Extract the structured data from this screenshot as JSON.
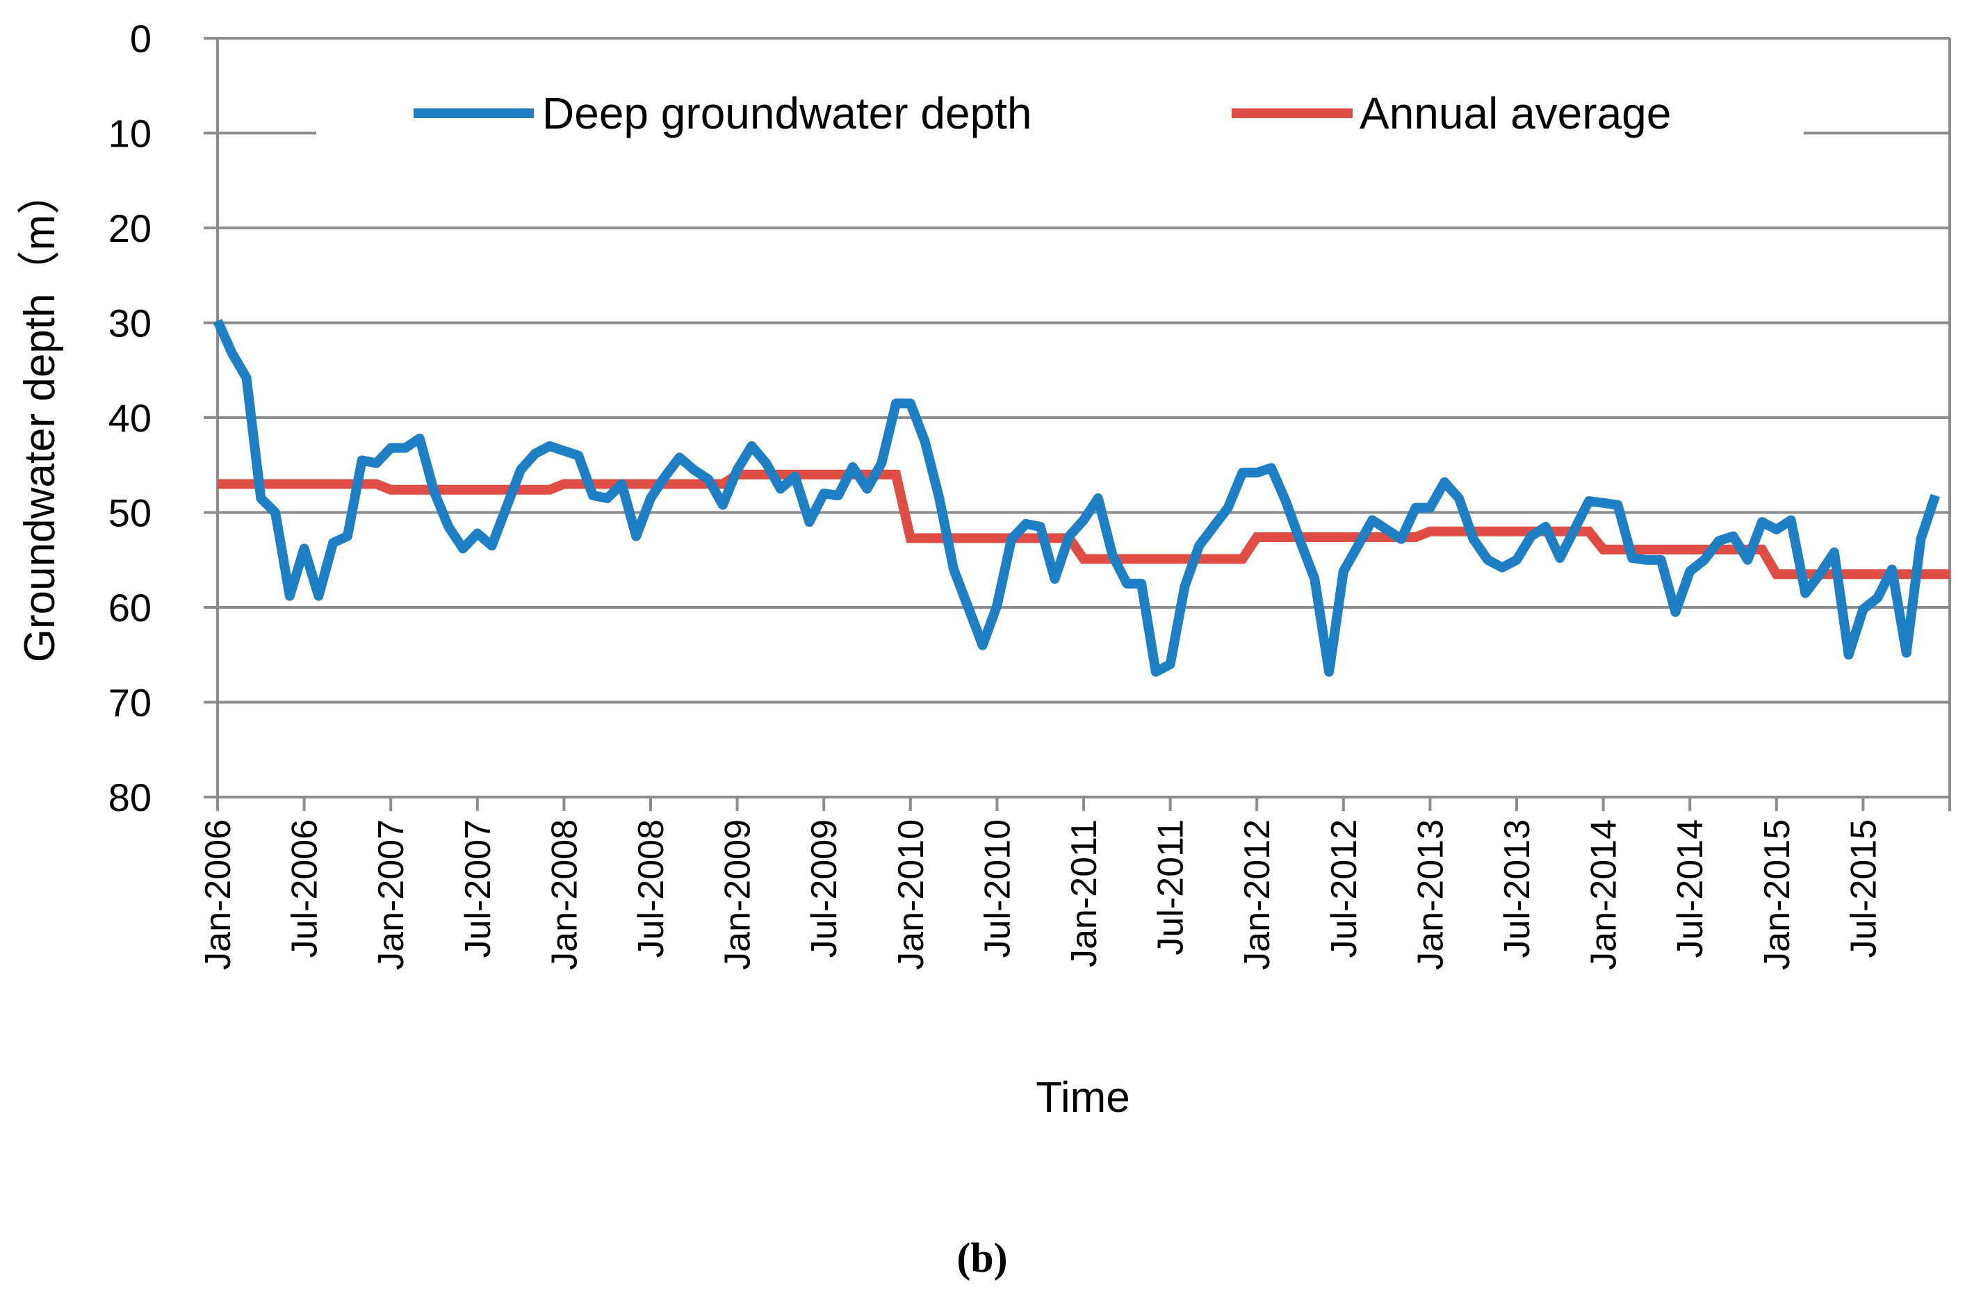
{
  "chart_data": {
    "type": "line",
    "title": "",
    "caption": "(b)",
    "caption_letter": "b",
    "xlabel": "Time",
    "ylabel": "Groundwater depth（m）",
    "ylim": [
      0,
      80
    ],
    "y_inverted": true,
    "y_ticks": [
      "0",
      "10",
      "20",
      "30",
      "40",
      "50",
      "60",
      "70",
      "80"
    ],
    "x_tick_labels": [
      "Jan-2006",
      "Jul-2006",
      "Jan-2007",
      "Jul-2007",
      "Jan-2008",
      "Jul-2008",
      "Jan-2009",
      "Jul-2009",
      "Jan-2010",
      "Jul-2010",
      "Jan-2011",
      "Jul-2011",
      "Jan-2012",
      "Jul-2012",
      "Jan-2013",
      "Jul-2013",
      "Jan-2014",
      "Jul-2014",
      "Jan-2015",
      "Jul-2015"
    ],
    "grid": true,
    "legend_position": "top",
    "series": [
      {
        "name": "Deep groundwater depth",
        "color": "#1f7fc4",
        "values": [
          29.8,
          33.2,
          35.8,
          48.5,
          50.0,
          58.8,
          53.8,
          58.8,
          53.2,
          52.5,
          44.5,
          44.8,
          43.2,
          43.2,
          42.2,
          47.8,
          51.5,
          53.8,
          52.2,
          53.5,
          49.5,
          45.5,
          43.8,
          43.0,
          43.5,
          44.0,
          48.2,
          48.5,
          47.0,
          52.5,
          48.5,
          46.2,
          44.2,
          45.5,
          46.5,
          49.2,
          45.5,
          43.0,
          44.8,
          47.5,
          46.2,
          51.0,
          48.0,
          48.2,
          45.2,
          47.5,
          44.8,
          38.5,
          38.5,
          42.5,
          48.5,
          56.0,
          60.0,
          64.0,
          59.8,
          52.8,
          51.2,
          51.5,
          57.0,
          52.5,
          50.8,
          48.5,
          54.5,
          57.5,
          57.5,
          66.8,
          66.0,
          57.8,
          53.5,
          51.5,
          49.5,
          45.8,
          45.8,
          45.3,
          48.8,
          53.0,
          57.0,
          66.8,
          56.2,
          53.5,
          50.8,
          51.8,
          52.8,
          49.5,
          49.5,
          46.8,
          48.5,
          52.8,
          55.0,
          55.8,
          55.0,
          52.5,
          51.5,
          54.8,
          51.8,
          48.8,
          49.0,
          49.2,
          54.8,
          55.0,
          55.0,
          60.5,
          56.2,
          55.0,
          53.0,
          52.5,
          55.0,
          51.0,
          51.8,
          50.8,
          58.5,
          56.5,
          54.2,
          65.0,
          60.2,
          59.0,
          56.0,
          64.8,
          52.8,
          48.2
        ]
      },
      {
        "name": "Annual average",
        "color": "#e04d45",
        "annual_values": [
          {
            "year": "2006",
            "value": 47.0
          },
          {
            "year": "2007",
            "value": 47.6
          },
          {
            "year": "2008",
            "value": 47.0
          },
          {
            "year": "2009",
            "value": 46.0
          },
          {
            "year": "2010",
            "value": 52.7
          },
          {
            "year": "2011",
            "value": 54.9
          },
          {
            "year": "2012",
            "value": 52.6
          },
          {
            "year": "2013",
            "value": 52.0
          },
          {
            "year": "2014",
            "value": 53.9
          },
          {
            "year": "2015",
            "value": 56.5
          }
        ]
      }
    ]
  }
}
